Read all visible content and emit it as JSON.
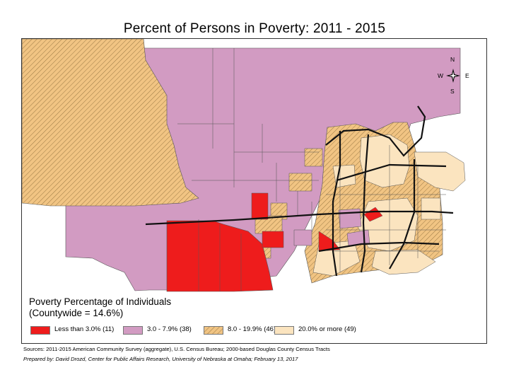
{
  "title": "Percent of Persons in Poverty: 2011 - 2015",
  "compass": {
    "n": "N",
    "s": "S",
    "e": "E",
    "w": "W"
  },
  "legend": {
    "title_line1": "Poverty Percentage of Individuals",
    "title_line2": "(Countywide = 14.6%)",
    "classes": [
      {
        "label": "Less than 3.0% (11)",
        "color": "#ee1c1c",
        "pattern": "solid"
      },
      {
        "label": "3.0 - 7.9% (38)",
        "color": "#d29bc2",
        "pattern": "solid"
      },
      {
        "label": "8.0 - 19.9% (46)",
        "color": "#f1c483",
        "pattern": "hatched"
      },
      {
        "label": "20.0% or more (49)",
        "color": "#fbe4bf",
        "pattern": "solid"
      }
    ]
  },
  "sources": "Sources: 2011-2015 American Community Survey (aggregate), U.S. Census Bureau; 2000-based Douglas County Census Tracts",
  "prepared_by": "Prepared by: David Drozd, Center for Public Affairs Research, University of Nebraska at Omaha; February 13, 2017"
}
